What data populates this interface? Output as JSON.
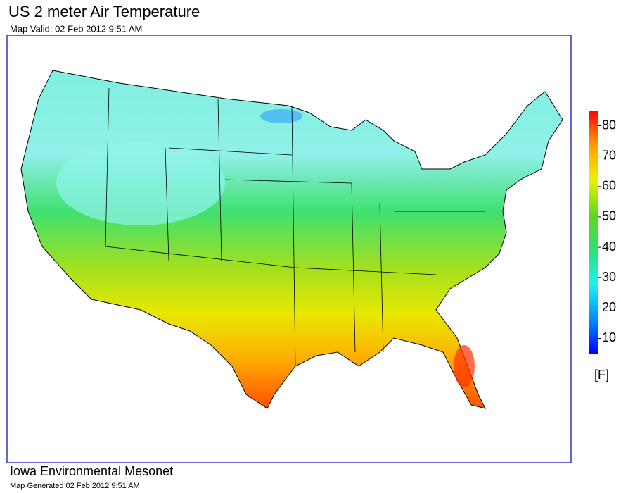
{
  "header": {
    "title": "US 2 meter Air Temperature",
    "subtitle": "Map Valid: 02 Feb 2012 9:51 AM"
  },
  "legend": {
    "range": [
      5,
      85
    ],
    "ticks": [
      10,
      20,
      30,
      40,
      50,
      60,
      70,
      80
    ],
    "unit": "[F]",
    "colors": [
      "#0000ff",
      "#0090ff",
      "#20f0f0",
      "#30e070",
      "#60d820",
      "#f0f000",
      "#ffa000",
      "#ff0000"
    ]
  },
  "footer": {
    "organization": "Iowa Environmental Mesonet",
    "generated": "Map Generated 02 Feb 2012 9:51 AM"
  }
}
